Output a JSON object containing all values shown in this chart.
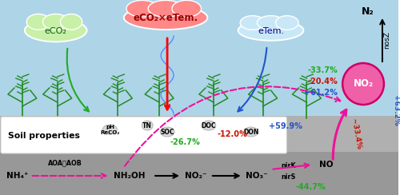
{
  "bg_sky_color": "#aed4e8",
  "bg_soil_color": "#b0b0b0",
  "bg_soil_dark": "#989898",
  "soil_box_color": "#f0f0f0",
  "cloud_eco2_color": "#c8f0a8",
  "cloud_combo_color": "#ff8888",
  "cloud_etem_color": "#c8e8f8",
  "no2_circle_color": "#f060a8",
  "arrow_pink_color": "#ee1199",
  "arrow_green_color": "#22aa22",
  "arrow_blue_color": "#2255cc",
  "text_green": "#22aa22",
  "text_red": "#cc1100",
  "text_blue": "#2255cc",
  "text_pink": "#ee1199",
  "pct_eco2": "-33.7%",
  "pct_etem": "-20.4%",
  "pct_combo": "+61.2%",
  "pct_nh4_eco2": "-26.7%",
  "pct_nh4_etem": "-12.0%",
  "pct_nh4_combo": "+59.9%",
  "pct_nirk": "-44.7%",
  "pct_no_rot": "~33.4%",
  "pct_no2_side": "+63.2%",
  "figw": 5.0,
  "figh": 2.44,
  "dpi": 100
}
